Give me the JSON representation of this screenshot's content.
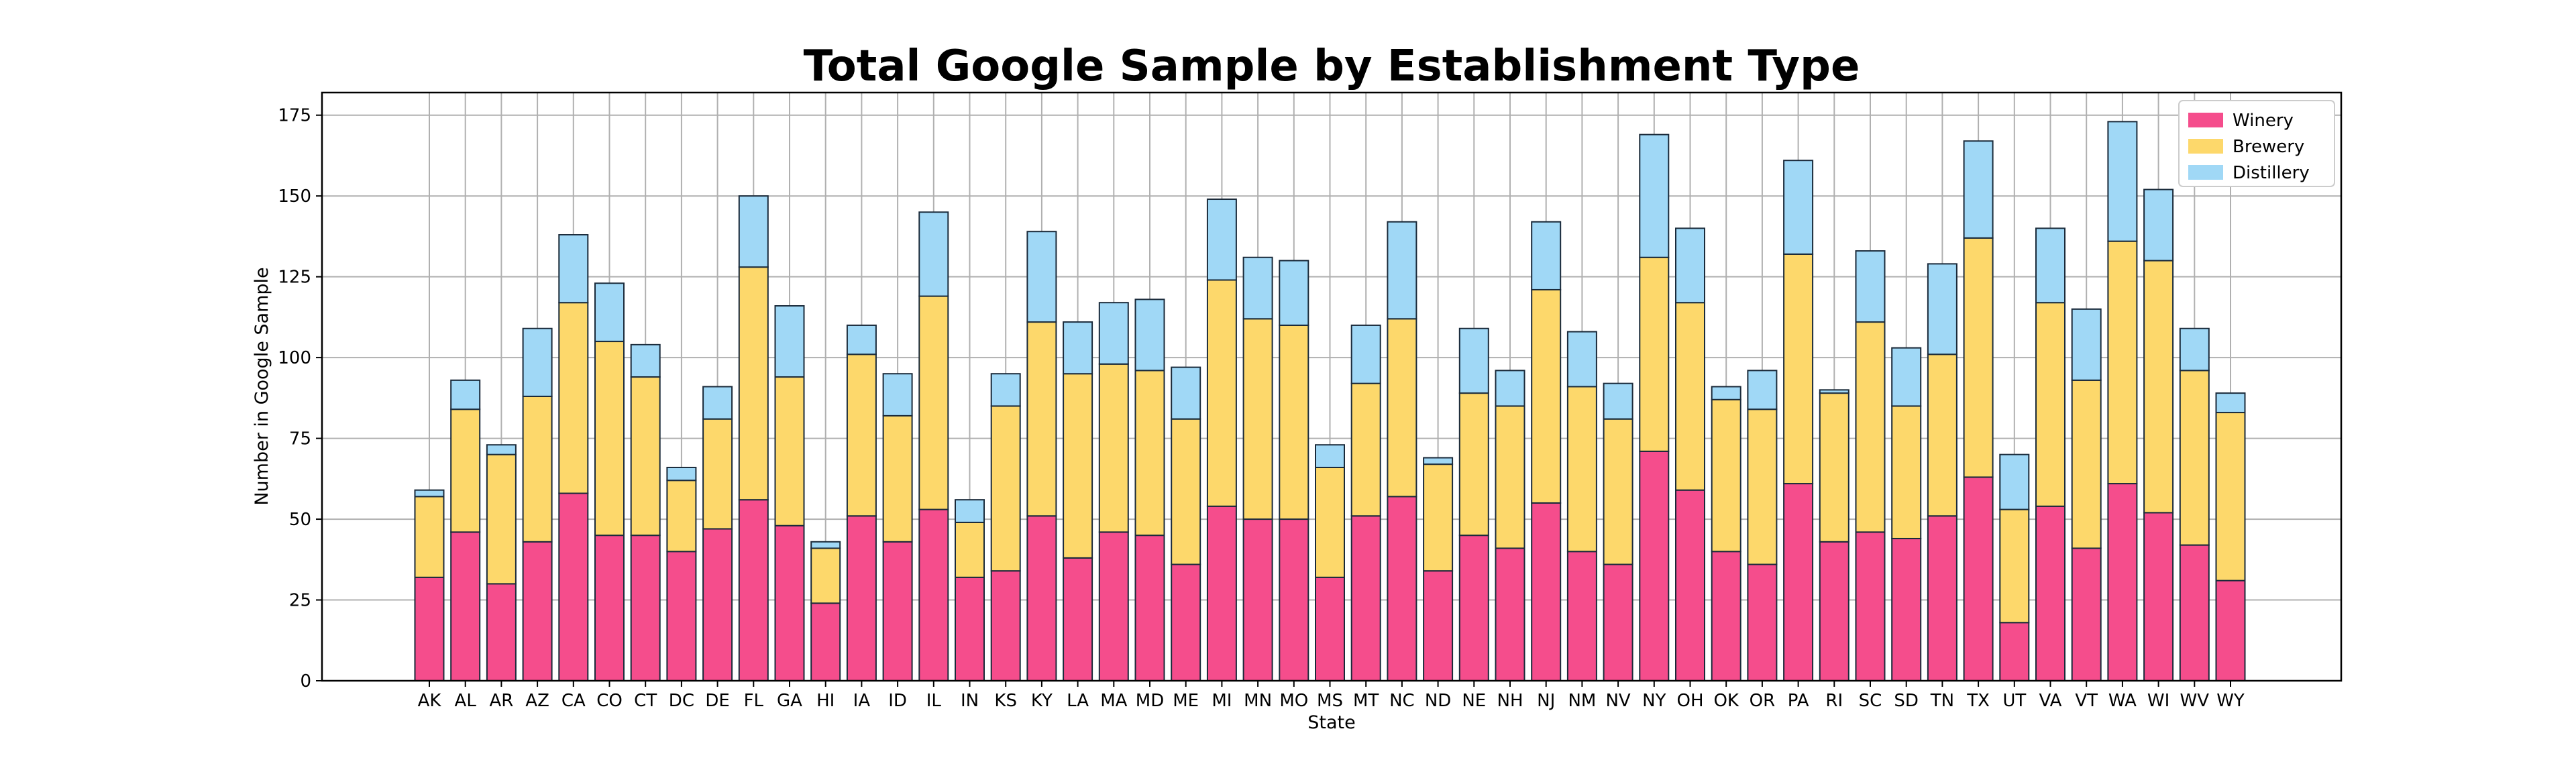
{
  "chart_data": {
    "type": "bar",
    "stacked": true,
    "title": "Total Google Sample by Establishment Type",
    "xlabel": "State",
    "ylabel": "Number in Google Sample",
    "ylim": [
      0,
      182
    ],
    "yticks": [
      0,
      25,
      50,
      75,
      100,
      125,
      150,
      175
    ],
    "grid": true,
    "legend_position": "top-right",
    "categories": [
      "AK",
      "AL",
      "AR",
      "AZ",
      "CA",
      "CO",
      "CT",
      "DC",
      "DE",
      "FL",
      "GA",
      "HI",
      "IA",
      "ID",
      "IL",
      "IN",
      "KS",
      "KY",
      "LA",
      "MA",
      "MD",
      "ME",
      "MI",
      "MN",
      "MO",
      "MS",
      "MT",
      "NC",
      "ND",
      "NE",
      "NH",
      "NJ",
      "NM",
      "NV",
      "NY",
      "OH",
      "OK",
      "OR",
      "PA",
      "RI",
      "SC",
      "SD",
      "TN",
      "TX",
      "UT",
      "VA",
      "VT",
      "WA",
      "WI",
      "WV",
      "WY"
    ],
    "series": [
      {
        "name": "Winery",
        "color": "#f54d8c",
        "values": [
          32,
          46,
          30,
          43,
          58,
          45,
          45,
          40,
          47,
          56,
          48,
          24,
          51,
          43,
          53,
          32,
          34,
          51,
          38,
          46,
          45,
          36,
          54,
          50,
          50,
          32,
          51,
          57,
          34,
          45,
          41,
          55,
          40,
          36,
          71,
          59,
          40,
          36,
          61,
          43,
          46,
          44,
          51,
          63,
          18,
          54,
          41,
          61,
          52,
          42,
          31
        ]
      },
      {
        "name": "Brewery",
        "color": "#fdd86b",
        "values": [
          25,
          38,
          40,
          45,
          59,
          60,
          49,
          22,
          34,
          72,
          46,
          17,
          50,
          39,
          66,
          17,
          51,
          60,
          57,
          52,
          51,
          45,
          70,
          62,
          60,
          34,
          41,
          55,
          33,
          44,
          44,
          66,
          51,
          45,
          60,
          58,
          47,
          48,
          71,
          46,
          65,
          41,
          50,
          74,
          35,
          63,
          52,
          75,
          78,
          54,
          52
        ]
      },
      {
        "name": "Distillery",
        "color": "#a0d8f6",
        "values": [
          2,
          9,
          3,
          21,
          21,
          18,
          10,
          4,
          10,
          22,
          22,
          2,
          9,
          13,
          26,
          7,
          10,
          28,
          16,
          19,
          22,
          16,
          25,
          19,
          20,
          7,
          18,
          30,
          2,
          20,
          11,
          21,
          17,
          11,
          38,
          23,
          4,
          12,
          29,
          1,
          22,
          18,
          28,
          30,
          17,
          23,
          22,
          37,
          22,
          13,
          6
        ]
      }
    ]
  }
}
